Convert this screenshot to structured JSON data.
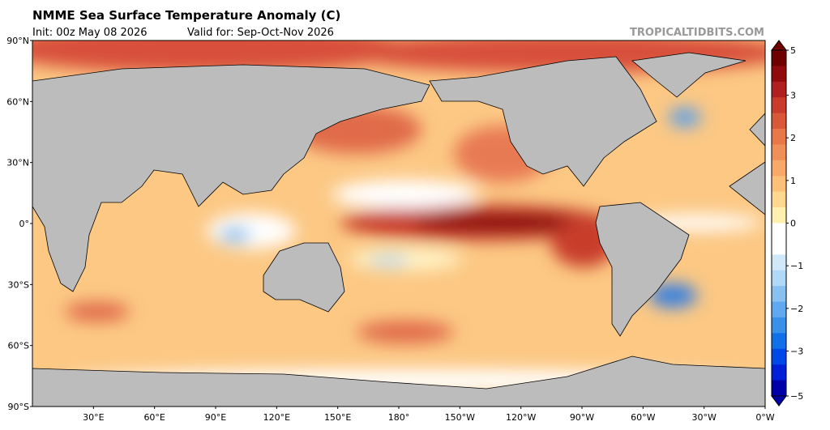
{
  "header": {
    "title": "NMME Sea Surface Temperature Anomaly (C)",
    "init": "Init: 00z May 08 2026",
    "valid": "Valid for: Sep-Oct-Nov 2026",
    "watermark": "TROPICALTIDBITS.COM"
  },
  "map": {
    "lat_labels": [
      "90°N",
      "60°N",
      "30°N",
      "0°",
      "30°S",
      "60°S",
      "90°S"
    ],
    "lon_labels": [
      "30°E",
      "60°E",
      "90°E",
      "120°E",
      "150°E",
      "180°",
      "150°W",
      "120°W",
      "90°W",
      "60°W",
      "30°W",
      "0°W"
    ]
  },
  "colorbar": {
    "ticks": [
      5,
      3,
      2,
      1,
      0,
      {
        "value": -1,
        "label": "−1"
      },
      {
        "value": -2,
        "label": "−2"
      },
      {
        "value": -3,
        "label": "−3"
      },
      {
        "value": -5,
        "label": "−5"
      }
    ],
    "colors": [
      "#0000a8",
      "#0020d8",
      "#0048e8",
      "#1070e8",
      "#3890e8",
      "#60a8f0",
      "#88c0f0",
      "#b0d8f8",
      "#d0e8f8",
      "#ffffff",
      "#ffffff",
      "#fff0b0",
      "#ffd890",
      "#fcc078",
      "#f8a868",
      "#f09058",
      "#e87848",
      "#d85838",
      "#c83c2c",
      "#b02020",
      "#900c0c",
      "#700000"
    ]
  }
}
